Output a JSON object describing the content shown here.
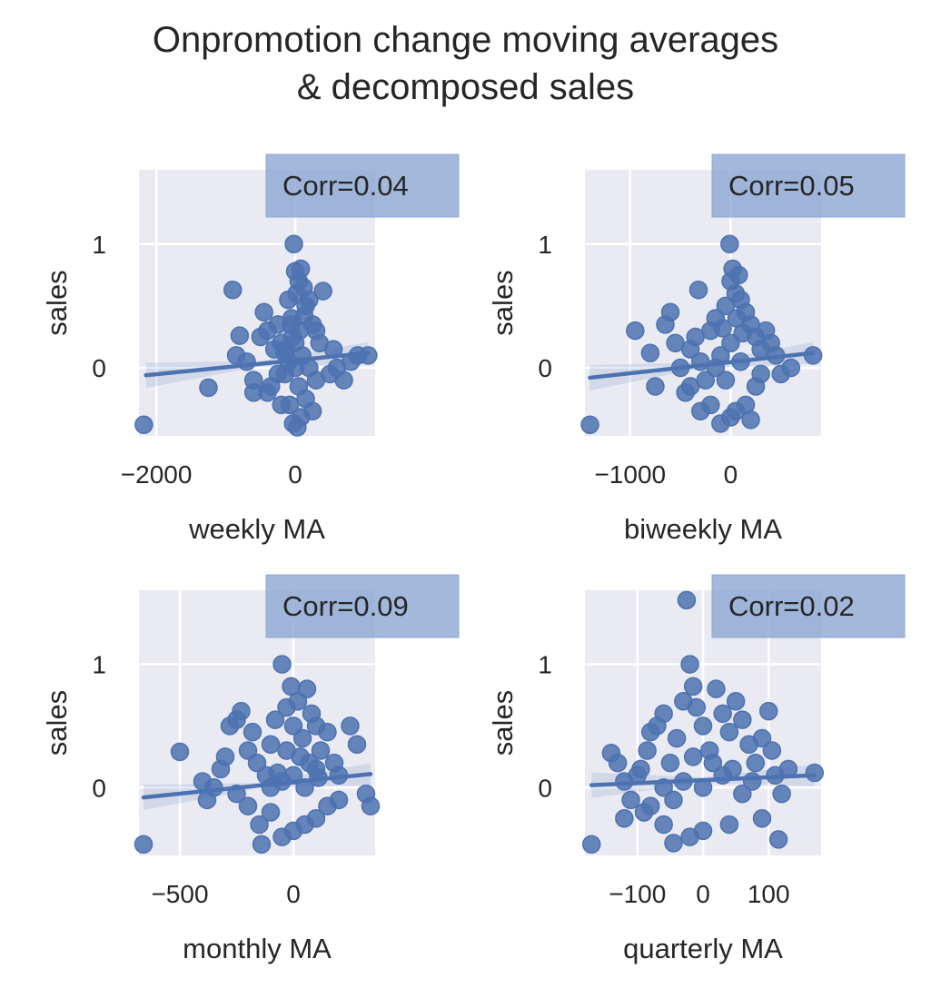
{
  "figure": {
    "title_line1": "Onpromotion change moving averages",
    "title_line2": "& decomposed sales"
  },
  "style": {
    "axes_bg": "#eaeaf2",
    "grid_color": "#ffffff",
    "point_color": "#4c72b0",
    "annotation_box_color": "#8fa8d3"
  },
  "chart_data": [
    {
      "type": "scatter",
      "name": "weekly",
      "xlabel": "weekly MA",
      "ylabel": "sales",
      "annotation": "Corr=0.04",
      "xlim": [
        -2250,
        1150
      ],
      "ylim": [
        -0.55,
        1.6
      ],
      "xticks": [
        {
          "v": -2000,
          "label": "−2000"
        },
        {
          "v": 0,
          "label": "0"
        }
      ],
      "yticks": [
        {
          "v": 0,
          "label": "0"
        },
        {
          "v": 1,
          "label": "1"
        }
      ],
      "regression": {
        "x": [
          -2150,
          1050
        ],
        "y": [
          -0.06,
          0.12
        ]
      },
      "points": [
        [
          -2180,
          -0.46
        ],
        [
          -1250,
          -0.16
        ],
        [
          -900,
          0.63
        ],
        [
          -800,
          0.26
        ],
        [
          -850,
          0.1
        ],
        [
          -700,
          0.05
        ],
        [
          -600,
          -0.2
        ],
        [
          -500,
          0.25
        ],
        [
          -450,
          0.45
        ],
        [
          -400,
          0.3
        ],
        [
          -350,
          -0.15
        ],
        [
          -300,
          0.15
        ],
        [
          -250,
          0.35
        ],
        [
          -200,
          0.2
        ],
        [
          -150,
          -0.05
        ],
        [
          -100,
          0.55
        ],
        [
          -50,
          0.4
        ],
        [
          -20,
          1.0
        ],
        [
          -60,
          0.35
        ],
        [
          0,
          0.78
        ],
        [
          20,
          0.6
        ],
        [
          50,
          0.7
        ],
        [
          80,
          0.8
        ],
        [
          120,
          0.65
        ],
        [
          150,
          0.5
        ],
        [
          200,
          0.55
        ],
        [
          250,
          0.35
        ],
        [
          300,
          0.3
        ],
        [
          350,
          0.2
        ],
        [
          400,
          0.62
        ],
        [
          500,
          -0.05
        ],
        [
          550,
          0.15
        ],
        [
          600,
          0.0
        ],
        [
          700,
          -0.1
        ],
        [
          800,
          0.05
        ],
        [
          900,
          0.1
        ],
        [
          1050,
          0.1
        ],
        [
          -30,
          -0.45
        ],
        [
          30,
          -0.48
        ],
        [
          80,
          -0.4
        ],
        [
          -80,
          -0.3
        ],
        [
          150,
          -0.25
        ],
        [
          250,
          -0.35
        ],
        [
          -200,
          -0.3
        ],
        [
          -400,
          -0.2
        ],
        [
          -600,
          -0.1
        ],
        [
          0,
          0.2
        ],
        [
          0,
          0.0
        ],
        [
          100,
          0.1
        ],
        [
          -100,
          0.05
        ],
        [
          50,
          -0.15
        ],
        [
          -150,
          0.12
        ],
        [
          200,
          0.0
        ],
        [
          -250,
          -0.05
        ],
        [
          300,
          -0.1
        ],
        [
          60,
          0.3
        ],
        [
          -40,
          0.25
        ],
        [
          130,
          0.42
        ],
        [
          -130,
          0.15
        ]
      ]
    },
    {
      "type": "scatter",
      "name": "biweekly",
      "xlabel": "biweekly MA",
      "ylabel": "sales",
      "annotation": "Corr=0.05",
      "xlim": [
        -1450,
        900
      ],
      "ylim": [
        -0.55,
        1.6
      ],
      "xticks": [
        {
          "v": -1000,
          "label": "−1000"
        },
        {
          "v": 0,
          "label": "0"
        }
      ],
      "yticks": [
        {
          "v": 0,
          "label": "0"
        },
        {
          "v": 1,
          "label": "1"
        }
      ],
      "regression": {
        "x": [
          -1400,
          820
        ],
        "y": [
          -0.08,
          0.12
        ]
      },
      "points": [
        [
          -1400,
          -0.46
        ],
        [
          -950,
          0.3
        ],
        [
          -800,
          0.12
        ],
        [
          -750,
          -0.15
        ],
        [
          -650,
          0.35
        ],
        [
          -600,
          0.45
        ],
        [
          -550,
          0.2
        ],
        [
          -500,
          0.0
        ],
        [
          -450,
          -0.2
        ],
        [
          -400,
          0.15
        ],
        [
          -350,
          0.25
        ],
        [
          -300,
          0.05
        ],
        [
          -320,
          0.63
        ],
        [
          -250,
          -0.1
        ],
        [
          -200,
          0.3
        ],
        [
          -150,
          0.4
        ],
        [
          -100,
          0.1
        ],
        [
          -50,
          0.5
        ],
        [
          -10,
          1.0
        ],
        [
          0,
          0.7
        ],
        [
          20,
          0.8
        ],
        [
          50,
          0.6
        ],
        [
          80,
          0.75
        ],
        [
          100,
          0.55
        ],
        [
          150,
          0.45
        ],
        [
          200,
          0.35
        ],
        [
          250,
          0.25
        ],
        [
          300,
          0.15
        ],
        [
          350,
          0.3
        ],
        [
          400,
          0.2
        ],
        [
          450,
          0.1
        ],
        [
          500,
          -0.05
        ],
        [
          600,
          0.0
        ],
        [
          820,
          0.1
        ],
        [
          -100,
          -0.45
        ],
        [
          0,
          -0.4
        ],
        [
          50,
          -0.35
        ],
        [
          150,
          -0.3
        ],
        [
          200,
          -0.42
        ],
        [
          -200,
          -0.3
        ],
        [
          -300,
          -0.35
        ],
        [
          -400,
          -0.15
        ],
        [
          -150,
          0.0
        ],
        [
          0,
          0.2
        ],
        [
          100,
          0.05
        ],
        [
          -50,
          -0.1
        ],
        [
          250,
          -0.15
        ],
        [
          300,
          -0.05
        ],
        [
          120,
          0.28
        ],
        [
          -80,
          0.32
        ],
        [
          60,
          0.4
        ]
      ]
    },
    {
      "type": "scatter",
      "name": "monthly",
      "xlabel": "monthly MA",
      "ylabel": "sales",
      "annotation": "Corr=0.09",
      "xlim": [
        -680,
        360
      ],
      "ylim": [
        -0.55,
        1.6
      ],
      "xticks": [
        {
          "v": -500,
          "label": "−500"
        },
        {
          "v": 0,
          "label": "0"
        }
      ],
      "yticks": [
        {
          "v": 0,
          "label": "0"
        },
        {
          "v": 1,
          "label": "1"
        }
      ],
      "regression": {
        "x": [
          -660,
          340
        ],
        "y": [
          -0.08,
          0.11
        ]
      },
      "points": [
        [
          -660,
          -0.46
        ],
        [
          -500,
          0.29
        ],
        [
          -400,
          0.05
        ],
        [
          -380,
          -0.1
        ],
        [
          -350,
          0.0
        ],
        [
          -320,
          0.15
        ],
        [
          -300,
          0.25
        ],
        [
          -280,
          0.5
        ],
        [
          -250,
          0.55
        ],
        [
          -230,
          0.62
        ],
        [
          -200,
          0.3
        ],
        [
          -180,
          0.45
        ],
        [
          -160,
          0.2
        ],
        [
          -140,
          -0.46
        ],
        [
          -120,
          0.1
        ],
        [
          -100,
          0.35
        ],
        [
          -80,
          0.55
        ],
        [
          -50,
          1.0
        ],
        [
          -30,
          0.65
        ],
        [
          -10,
          0.82
        ],
        [
          0,
          0.5
        ],
        [
          20,
          0.7
        ],
        [
          40,
          0.4
        ],
        [
          60,
          0.8
        ],
        [
          80,
          0.6
        ],
        [
          100,
          0.5
        ],
        [
          120,
          0.3
        ],
        [
          150,
          0.45
        ],
        [
          180,
          0.2
        ],
        [
          200,
          0.1
        ],
        [
          250,
          0.5
        ],
        [
          280,
          0.35
        ],
        [
          320,
          -0.05
        ],
        [
          340,
          -0.15
        ],
        [
          -50,
          -0.4
        ],
        [
          0,
          -0.35
        ],
        [
          50,
          -0.3
        ],
        [
          100,
          -0.25
        ],
        [
          150,
          -0.15
        ],
        [
          200,
          -0.1
        ],
        [
          -100,
          -0.2
        ],
        [
          -150,
          -0.3
        ],
        [
          -200,
          -0.15
        ],
        [
          -250,
          -0.05
        ],
        [
          0,
          0.1
        ],
        [
          50,
          0.0
        ],
        [
          -50,
          0.05
        ],
        [
          100,
          0.15
        ],
        [
          -100,
          0.0
        ],
        [
          30,
          0.25
        ],
        [
          -30,
          0.3
        ],
        [
          70,
          0.2
        ],
        [
          -70,
          0.12
        ],
        [
          110,
          0.08
        ]
      ]
    },
    {
      "type": "scatter",
      "name": "quarterly",
      "xlabel": "quarterly MA",
      "ylabel": "sales",
      "annotation": "Corr=0.02",
      "xlim": [
        -180,
        180
      ],
      "ylim": [
        -0.55,
        1.6
      ],
      "xticks": [
        {
          "v": -100,
          "label": "−100"
        },
        {
          "v": 0,
          "label": "0"
        },
        {
          "v": 100,
          "label": "100"
        }
      ],
      "yticks": [
        {
          "v": 0,
          "label": "0"
        },
        {
          "v": 1,
          "label": "1"
        }
      ],
      "regression": {
        "x": [
          -170,
          170
        ],
        "y": [
          0.02,
          0.1
        ]
      },
      "points": [
        [
          -170,
          -0.46
        ],
        [
          -140,
          0.28
        ],
        [
          -130,
          0.2
        ],
        [
          -120,
          0.05
        ],
        [
          -110,
          -0.1
        ],
        [
          -100,
          0.1
        ],
        [
          -95,
          0.15
        ],
        [
          -90,
          -0.2
        ],
        [
          -85,
          0.3
        ],
        [
          -80,
          0.45
        ],
        [
          -70,
          0.5
        ],
        [
          -60,
          0.6
        ],
        [
          -50,
          0.2
        ],
        [
          -45,
          -0.45
        ],
        [
          -40,
          0.4
        ],
        [
          -30,
          0.7
        ],
        [
          -25,
          1.52
        ],
        [
          -20,
          1.0
        ],
        [
          -15,
          0.82
        ],
        [
          -10,
          0.65
        ],
        [
          0,
          0.5
        ],
        [
          10,
          0.3
        ],
        [
          20,
          0.8
        ],
        [
          30,
          0.6
        ],
        [
          40,
          0.45
        ],
        [
          50,
          0.7
        ],
        [
          60,
          0.55
        ],
        [
          70,
          0.35
        ],
        [
          80,
          0.2
        ],
        [
          90,
          0.4
        ],
        [
          100,
          0.62
        ],
        [
          105,
          0.3
        ],
        [
          110,
          0.1
        ],
        [
          120,
          -0.05
        ],
        [
          130,
          0.15
        ],
        [
          170,
          0.12
        ],
        [
          -20,
          -0.4
        ],
        [
          0,
          -0.35
        ],
        [
          40,
          -0.3
        ],
        [
          90,
          -0.25
        ],
        [
          115,
          -0.42
        ],
        [
          -60,
          -0.3
        ],
        [
          -80,
          -0.15
        ],
        [
          -120,
          -0.25
        ],
        [
          0,
          0.0
        ],
        [
          30,
          0.1
        ],
        [
          -30,
          0.05
        ],
        [
          60,
          -0.05
        ],
        [
          -60,
          0.0
        ],
        [
          15,
          0.2
        ],
        [
          -15,
          0.25
        ],
        [
          45,
          0.15
        ],
        [
          -45,
          -0.1
        ],
        [
          75,
          0.05
        ]
      ]
    }
  ]
}
